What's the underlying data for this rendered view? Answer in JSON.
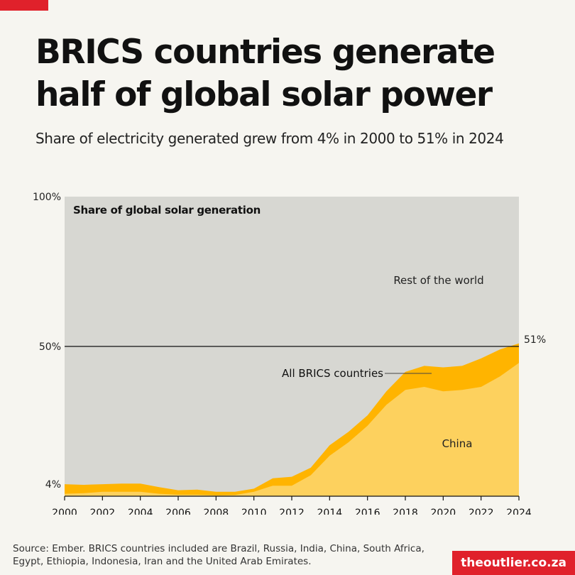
{
  "header": {
    "title": "BRICS countries generate half of global solar power",
    "subtitle": "Share of electricity generated grew from 4% in 2000 to 51% in 2024"
  },
  "footer": {
    "source": "Source: Ember. BRICS countries included are Brazil, Russia, India, China, South Africa, Egypt, Ethiopia, Indonesia, Iran and the United Arab Emirates.",
    "brand": "theoutlier.co.za"
  },
  "colors": {
    "background": "#f6f5f0",
    "plot_background": "#d7d7d2",
    "brics": "#ffb400",
    "china": "#fdd15e",
    "brand_red": "#e0212b"
  },
  "chart_data": {
    "type": "area",
    "title": "Share of global solar generation",
    "x": [
      2000,
      2001,
      2002,
      2003,
      2004,
      2005,
      2006,
      2007,
      2008,
      2009,
      2010,
      2011,
      2012,
      2013,
      2014,
      2015,
      2016,
      2017,
      2018,
      2019,
      2020,
      2021,
      2022,
      2023,
      2024
    ],
    "series": [
      {
        "name": "China",
        "values": [
          0.8,
          1.0,
          1.5,
          1.5,
          1.5,
          0.8,
          0.5,
          0.5,
          0.3,
          0.4,
          1.5,
          3.5,
          3.5,
          7.0,
          13.5,
          18.0,
          23.5,
          30.5,
          35.5,
          36.5,
          35.0,
          35.5,
          36.5,
          40.0,
          44.5
        ]
      },
      {
        "name": "All BRICS countries",
        "values": [
          4.0,
          3.8,
          4.0,
          4.2,
          4.2,
          3.0,
          2.0,
          2.2,
          1.5,
          1.5,
          2.5,
          6.0,
          6.5,
          9.5,
          17.0,
          21.5,
          27.0,
          35.0,
          41.5,
          43.5,
          43.0,
          43.5,
          46.0,
          49.0,
          51.0
        ]
      }
    ],
    "labels": {
      "rest": "Rest of the world",
      "brics": "All BRICS countries",
      "china": "China",
      "end_value": "51%"
    },
    "y_ticks": [
      "100%",
      "50%",
      "4%"
    ],
    "y_tick_values": [
      100,
      50,
      4
    ],
    "x_ticks": [
      "2000",
      "2002",
      "2004",
      "2006",
      "2008",
      "2010",
      "2012",
      "2014",
      "2016",
      "2018",
      "2020",
      "2022",
      "2024"
    ],
    "reference_line": 50,
    "xlim": [
      2000,
      2024
    ],
    "ylim": [
      0,
      100
    ],
    "grid": false,
    "legend": "none"
  }
}
